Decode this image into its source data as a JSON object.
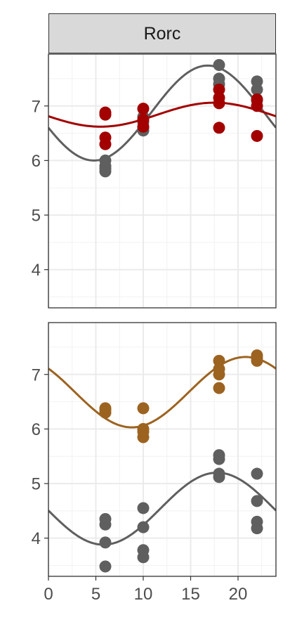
{
  "chart_data": [
    {
      "type": "scatter",
      "strip_title": "Rorc",
      "xlim": [
        0,
        24
      ],
      "ylim": [
        3.3,
        7.95
      ],
      "grid": true,
      "y_ticks": [
        4,
        5,
        6,
        7
      ],
      "y_tick_labels": [
        "4",
        "5",
        "6",
        "7"
      ],
      "series": [
        {
          "color": "#5f5f5f",
          "points": [
            [
              6,
              6.0
            ],
            [
              6,
              5.9
            ],
            [
              6,
              5.85
            ],
            [
              6,
              5.8
            ],
            [
              10,
              6.8
            ],
            [
              10,
              6.7
            ],
            [
              10,
              6.6
            ],
            [
              10,
              6.55
            ],
            [
              18,
              7.75
            ],
            [
              18,
              7.5
            ],
            [
              18,
              7.4
            ],
            [
              22,
              7.45
            ],
            [
              22,
              7.3
            ],
            [
              22,
              7.1
            ]
          ],
          "fit": {
            "mesor": 6.87,
            "amplitude": 0.87,
            "acrophase": 16.8
          }
        },
        {
          "color": "#a30000",
          "points": [
            [
              6,
              6.88
            ],
            [
              6,
              6.84
            ],
            [
              6,
              6.42
            ],
            [
              6,
              6.3
            ],
            [
              10,
              6.95
            ],
            [
              10,
              6.75
            ],
            [
              10,
              6.62
            ],
            [
              18,
              7.3
            ],
            [
              18,
              7.15
            ],
            [
              18,
              7.05
            ],
            [
              18,
              6.6
            ],
            [
              22,
              7.12
            ],
            [
              22,
              7.0
            ],
            [
              22,
              6.45
            ]
          ],
          "fit": {
            "mesor": 6.84,
            "amplitude": 0.22,
            "acrophase": 17.5
          }
        }
      ]
    },
    {
      "type": "scatter",
      "xlim": [
        0,
        24
      ],
      "ylim": [
        3.3,
        7.95
      ],
      "grid": true,
      "y_ticks": [
        4,
        5,
        6,
        7
      ],
      "y_tick_labels": [
        "4",
        "5",
        "6",
        "7"
      ],
      "x_ticks": [
        0,
        5,
        10,
        15,
        20
      ],
      "x_tick_labels": [
        "0",
        "5",
        "10",
        "15",
        "20"
      ],
      "series": [
        {
          "color": "#9c6320",
          "points": [
            [
              6,
              6.38
            ],
            [
              6,
              6.35
            ],
            [
              6,
              6.3
            ],
            [
              10,
              6.38
            ],
            [
              10,
              6.0
            ],
            [
              10,
              5.95
            ],
            [
              10,
              5.85
            ],
            [
              18,
              7.25
            ],
            [
              18,
              7.1
            ],
            [
              18,
              7.0
            ],
            [
              18,
              6.75
            ],
            [
              22,
              7.35
            ],
            [
              22,
              7.3
            ],
            [
              22,
              7.25
            ]
          ],
          "fit": {
            "mesor": 6.675,
            "amplitude": 0.645,
            "acrophase": 20.8
          }
        },
        {
          "color": "#5f5f5f",
          "points": [
            [
              6,
              4.35
            ],
            [
              6,
              4.25
            ],
            [
              6,
              3.92
            ],
            [
              6,
              3.48
            ],
            [
              10,
              4.55
            ],
            [
              10,
              4.2
            ],
            [
              10,
              3.78
            ],
            [
              10,
              3.65
            ],
            [
              18,
              5.52
            ],
            [
              18,
              5.45
            ],
            [
              18,
              5.18
            ],
            [
              18,
              5.12
            ],
            [
              22,
              5.18
            ],
            [
              22,
              4.68
            ],
            [
              22,
              4.3
            ],
            [
              22,
              4.18
            ]
          ],
          "fit": {
            "mesor": 4.54,
            "amplitude": 0.66,
            "acrophase": 17.8
          }
        }
      ]
    }
  ]
}
